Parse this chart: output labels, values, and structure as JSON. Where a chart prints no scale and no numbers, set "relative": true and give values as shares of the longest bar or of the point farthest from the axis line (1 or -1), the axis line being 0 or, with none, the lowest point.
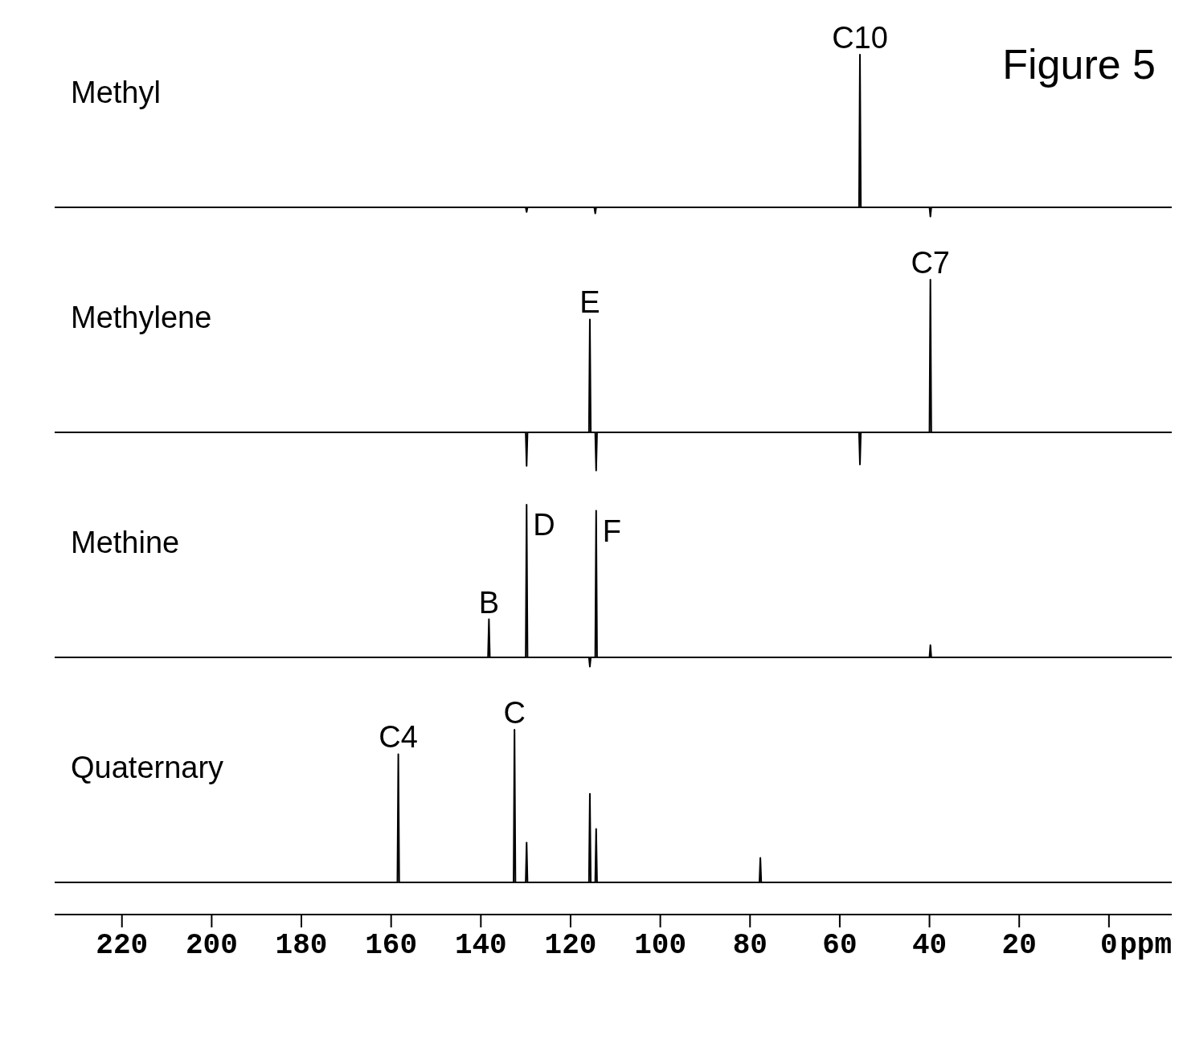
{
  "chart_data": [
    {
      "type": "line",
      "title": "Methyl",
      "relative": true,
      "xlim": [
        235,
        -14
      ],
      "tick_labels": false,
      "annotations": [
        "Figure 5",
        {
          "text": "C10",
          "x": 55.5,
          "y": 1
        }
      ],
      "series": [
        {
          "color": "#000000",
          "x": [
            235,
            130.0,
            129.8,
            129.6,
            114.7,
            114.5,
            114.3,
            55.7,
            55.5,
            55.3,
            40.0,
            39.8,
            39.6,
            -14
          ],
          "values": [
            0,
            0,
            -0.03,
            0,
            0,
            -0.04,
            0,
            0,
            1,
            0,
            0,
            -0.06,
            0,
            0
          ]
        }
      ]
    },
    {
      "type": "line",
      "title": "Methylene",
      "relative": true,
      "xlim": [
        235,
        -14
      ],
      "tick_labels": false,
      "annotations": [
        {
          "text": "E",
          "x": 115.7,
          "y": 0.74
        },
        {
          "text": "C7",
          "x": 39.8,
          "y": 1
        }
      ],
      "series": [
        {
          "color": "#000000",
          "x": [
            235,
            130.0,
            129.8,
            129.6,
            115.9,
            115.7,
            115.5,
            114.5,
            114.3,
            114.1,
            55.7,
            55.5,
            55.3,
            40.0,
            39.8,
            39.6,
            -14
          ],
          "values": [
            0,
            0,
            -0.22,
            0,
            0,
            0.74,
            0,
            0,
            -0.25,
            0,
            0,
            -0.21,
            0,
            0,
            1,
            0,
            0
          ]
        }
      ]
    },
    {
      "type": "line",
      "title": "Methine",
      "relative": true,
      "xlim": [
        235,
        -14
      ],
      "tick_labels": false,
      "annotations": [
        {
          "text": "B",
          "x": 138.2,
          "y": 0.25
        },
        {
          "text": "D",
          "x": 129.8,
          "y": 1
        },
        {
          "text": "F",
          "x": 114.3,
          "y": 0.96
        }
      ],
      "series": [
        {
          "color": "#000000",
          "x": [
            235,
            138.4,
            138.2,
            138.0,
            130.0,
            129.8,
            129.6,
            115.9,
            115.7,
            115.5,
            114.5,
            114.3,
            114.1,
            40.0,
            39.8,
            39.6,
            -14
          ],
          "values": [
            0,
            0,
            0.25,
            0,
            0,
            1,
            0,
            0,
            -0.06,
            0,
            0,
            0.96,
            0,
            0,
            0.08,
            0,
            0
          ]
        }
      ]
    },
    {
      "type": "line",
      "title": "Quaternary",
      "relative": true,
      "xlim": [
        235,
        -14
      ],
      "tick_labels": "x",
      "xlabel": "ppm",
      "annotations": [
        {
          "text": "C4",
          "x": 158.4,
          "y": 0.84
        },
        {
          "text": "C",
          "x": 132.5,
          "y": 1
        }
      ],
      "xticks": [
        220,
        200,
        180,
        160,
        140,
        120,
        100,
        80,
        60,
        40,
        20,
        0
      ],
      "series": [
        {
          "color": "#000000",
          "x": [
            235,
            158.6,
            158.4,
            158.2,
            132.7,
            132.5,
            132.3,
            130.0,
            129.8,
            129.6,
            115.9,
            115.7,
            115.5,
            114.5,
            114.3,
            114.1,
            77.9,
            77.7,
            77.5,
            -14
          ],
          "values": [
            0,
            0,
            0.84,
            0,
            0,
            1,
            0,
            0,
            0.26,
            0,
            0,
            0.58,
            0,
            0,
            0.35,
            0,
            0,
            0.16,
            0,
            0
          ]
        }
      ]
    }
  ]
}
